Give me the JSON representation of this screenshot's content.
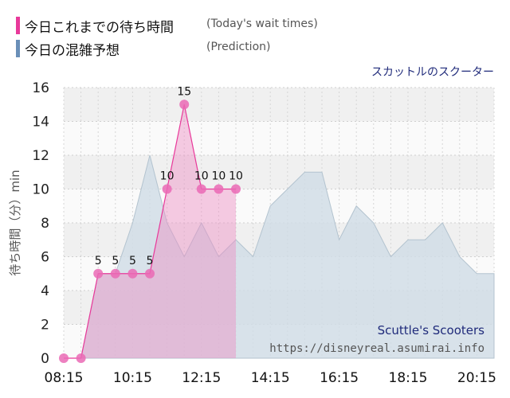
{
  "legend": {
    "today": {
      "label": "今日これまでの待ち時間",
      "note": "(Today's wait times)",
      "color": "#e8399a"
    },
    "prediction": {
      "label": "今日の混雑予想",
      "note": "(Prediction)",
      "color": "#6a8fb8"
    }
  },
  "attraction_jp": "スカットルのスクーター",
  "watermark": {
    "name": "Scuttle's Scooters",
    "url": "https://disneyreal.asumirai.info"
  },
  "chart_data": {
    "type": "area",
    "ylabel": "待ち時間（分）min",
    "ylim": [
      0,
      16
    ],
    "yticks": [
      0,
      2,
      4,
      6,
      8,
      10,
      12,
      14,
      16
    ],
    "xlim": [
      "08:15",
      "20:45"
    ],
    "xticks": [
      "08:15",
      "10:15",
      "12:15",
      "14:15",
      "16:15",
      "18:15",
      "20:15"
    ],
    "grid": true,
    "series": [
      {
        "name": "今日の混雑予想",
        "values": [
          [
            "08:15",
            0
          ],
          [
            "08:45",
            0
          ],
          [
            "09:15",
            5
          ],
          [
            "09:45",
            5
          ],
          [
            "10:15",
            8
          ],
          [
            "10:45",
            12
          ],
          [
            "11:15",
            8
          ],
          [
            "11:45",
            6
          ],
          [
            "12:15",
            8
          ],
          [
            "12:45",
            6
          ],
          [
            "13:15",
            7
          ],
          [
            "13:45",
            6
          ],
          [
            "14:15",
            9
          ],
          [
            "14:45",
            10
          ],
          [
            "15:15",
            11
          ],
          [
            "15:45",
            11
          ],
          [
            "16:15",
            7
          ],
          [
            "16:45",
            9
          ],
          [
            "17:15",
            8
          ],
          [
            "17:45",
            6
          ],
          [
            "18:15",
            7
          ],
          [
            "18:45",
            7
          ],
          [
            "19:15",
            8
          ],
          [
            "19:45",
            6
          ],
          [
            "20:15",
            5
          ],
          [
            "20:45",
            5
          ]
        ]
      },
      {
        "name": "今日これまでの待ち時間",
        "values": [
          [
            "08:15",
            0
          ],
          [
            "08:45",
            0
          ],
          [
            "09:15",
            5
          ],
          [
            "09:45",
            5
          ],
          [
            "10:15",
            5
          ],
          [
            "10:45",
            5
          ],
          [
            "11:15",
            10
          ],
          [
            "11:45",
            15
          ],
          [
            "12:15",
            10
          ],
          [
            "12:45",
            10
          ],
          [
            "13:15",
            10
          ]
        ]
      }
    ]
  }
}
